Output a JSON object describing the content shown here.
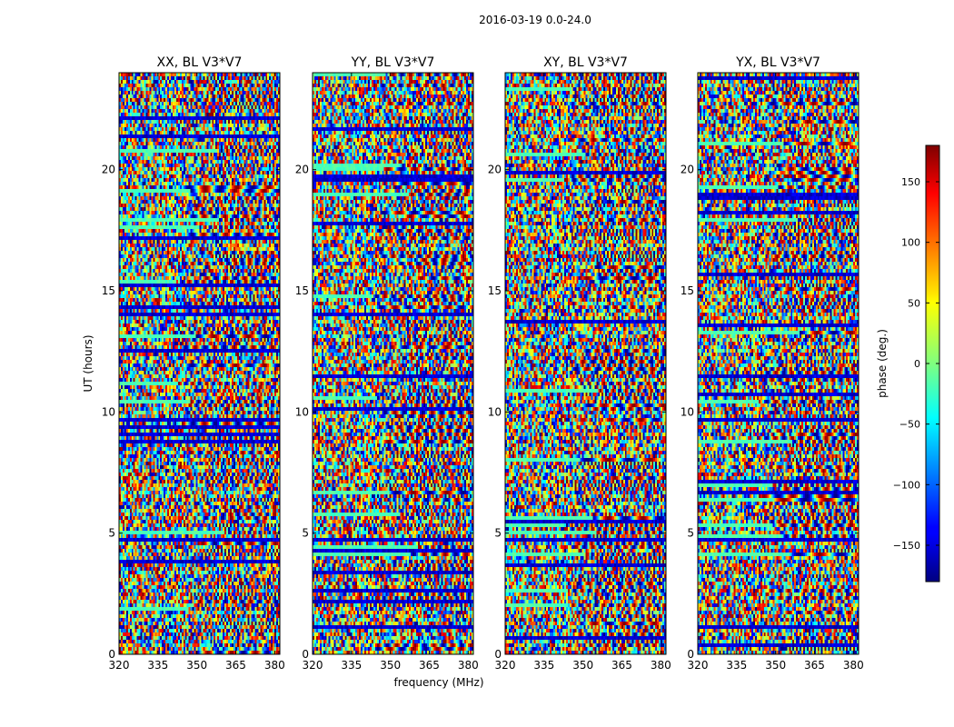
{
  "chart_data": {
    "type": "heatmap",
    "suptitle": "2016-03-19 0.0-24.0",
    "panels": [
      {
        "title": "XX, BL V3*V7"
      },
      {
        "title": "YY, BL V3*V7"
      },
      {
        "title": "XY, BL V3*V7"
      },
      {
        "title": "YX, BL V3*V7"
      }
    ],
    "xlabel": "frequency (MHz)",
    "ylabel": "UT (hours)",
    "xlim": [
      320,
      382
    ],
    "ylim": [
      0,
      24
    ],
    "xticks": [
      320,
      335,
      350,
      365,
      380
    ],
    "yticks": [
      0,
      5,
      10,
      15,
      20
    ],
    "colorbar": {
      "label": "phase (deg.)",
      "range": [
        -180,
        180
      ],
      "ticks": [
        150,
        100,
        50,
        0,
        -50,
        -100,
        -150
      ],
      "tick_labels": [
        "150",
        "100",
        "50",
        "0",
        "−50",
        "−100",
        "−150"
      ],
      "colormap": "jet"
    }
  }
}
